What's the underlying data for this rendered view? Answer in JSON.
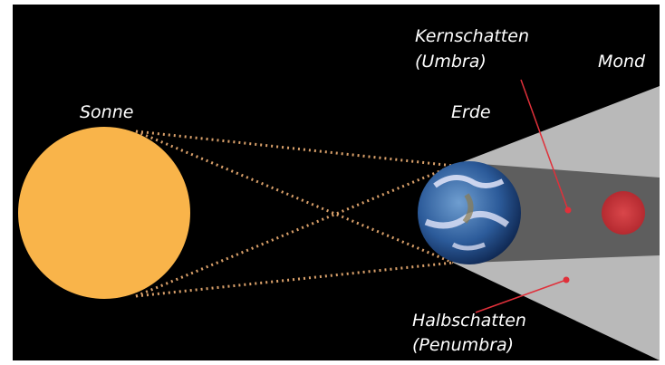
{
  "labels": {
    "sun": "Sonne",
    "earth": "Erde",
    "moon": "Mond",
    "umbra": [
      "Kernschatten",
      "(Umbra)"
    ],
    "penumbra": [
      "Halbschatten",
      "(Penumbra)"
    ]
  }
}
